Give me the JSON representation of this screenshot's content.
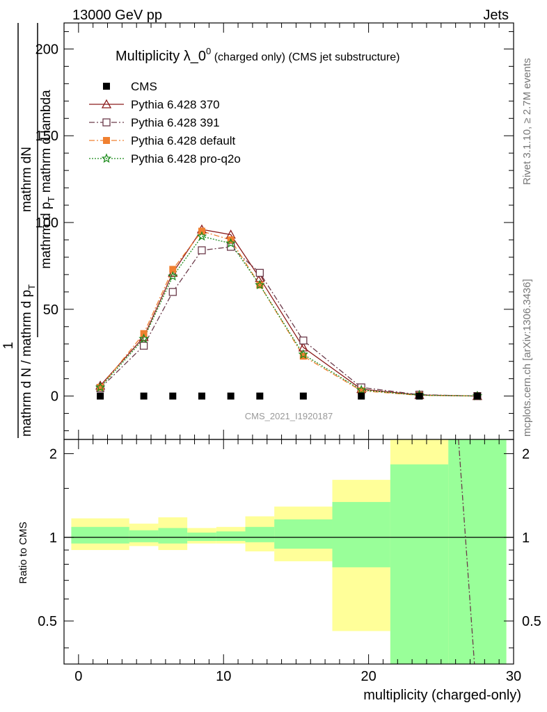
{
  "header": {
    "left": "13000 GeV pp",
    "right": "Jets"
  },
  "side": {
    "top": "Rivet 3.1.10, ≥ 2.7M events",
    "bottom": "mcplots.cern.ch [arXiv:1306.3436]"
  },
  "chart_data": [
    {
      "type": "line",
      "title": "Multiplicity λ_0⁰ (charged only) (CMS jet substructure)",
      "title_main": "Multiplicity λ_0",
      "title_sup": "0",
      "title_rest": " (charged only) (CMS jet substructure)",
      "ylabel_top": "mathrm dN",
      "ylabel_mid": "mathrm d p_T mathrm d lambda",
      "ylabel_left": "1",
      "ylabel_bottom": "mathrm d N / mathrm d p_T",
      "analysis_id": "CMS_2021_I1920187",
      "xlim": [
        -1,
        30
      ],
      "ylim": [
        -25,
        215
      ],
      "yticks": [
        0,
        50,
        100,
        150,
        200
      ],
      "xticks": [
        0,
        10,
        20,
        30
      ],
      "legend_position": "top-left",
      "x": [
        1.5,
        4.5,
        6.5,
        8.5,
        10.5,
        12.5,
        15.5,
        19.5,
        23.5,
        27.5
      ],
      "series": [
        {
          "name": "CMS",
          "color": "#000000",
          "marker": "square-filled",
          "line": "none",
          "values": [
            0,
            0,
            0,
            0,
            0,
            0,
            0,
            0,
            0,
            0
          ]
        },
        {
          "name": "Pythia 6.428 370",
          "color": "#8b1a1a",
          "marker": "triangle-open",
          "line": "solid",
          "values": [
            6,
            34,
            71,
            96,
            93,
            68,
            28,
            4,
            0.6,
            0
          ]
        },
        {
          "name": "Pythia 6.428 391",
          "color": "#6b3a4a",
          "marker": "square-open",
          "line": "dashdot",
          "values": [
            4.5,
            29,
            60,
            84,
            86,
            71,
            32,
            5,
            0.8,
            0
          ]
        },
        {
          "name": "Pythia 6.428 default",
          "color": "#f08030",
          "marker": "square-filled",
          "line": "dashdot",
          "values": [
            5,
            36,
            73,
            95,
            90,
            64,
            23,
            3,
            0.4,
            0
          ]
        },
        {
          "name": "Pythia 6.428 pro-q2o",
          "color": "#1a8a1a",
          "marker": "star",
          "line": "dotted",
          "values": [
            5,
            33,
            69,
            92,
            88,
            64,
            24,
            3.5,
            0.5,
            0
          ]
        }
      ]
    },
    {
      "type": "area",
      "ylabel": "Ratio to CMS",
      "xlabel": "multiplicity (charged-only)",
      "xlim": [
        -1,
        30
      ],
      "ylim": [
        0.35,
        2.25
      ],
      "yticks": [
        0.5,
        1,
        2
      ],
      "xticks": [
        0,
        10,
        20,
        30
      ],
      "bin_edges": [
        -0.5,
        3.5,
        5.5,
        7.5,
        9.5,
        11.5,
        13.5,
        17.5,
        21.5,
        25.5,
        29.5
      ],
      "bands": {
        "yellow_color": "#ffff99",
        "green_color": "#99ff99",
        "yellow_hi": [
          1.17,
          1.12,
          1.18,
          1.08,
          1.09,
          1.19,
          1.29,
          1.61,
          2.25,
          2.25
        ],
        "yellow_lo": [
          0.9,
          0.93,
          0.9,
          0.95,
          0.95,
          0.89,
          0.82,
          0.46,
          0.35,
          0.35
        ],
        "green_hi": [
          1.09,
          1.06,
          1.08,
          1.04,
          1.05,
          1.09,
          1.16,
          1.34,
          1.83,
          2.25
        ],
        "green_lo": [
          0.95,
          0.96,
          0.95,
          0.97,
          0.97,
          0.96,
          0.91,
          0.78,
          0.35,
          0.35
        ]
      },
      "overflow_line": {
        "series": "Pythia 6.428 391",
        "color": "#6b3a4a",
        "x": [
          26.2,
          27.3
        ],
        "y": [
          2.25,
          0.35
        ]
      }
    }
  ]
}
